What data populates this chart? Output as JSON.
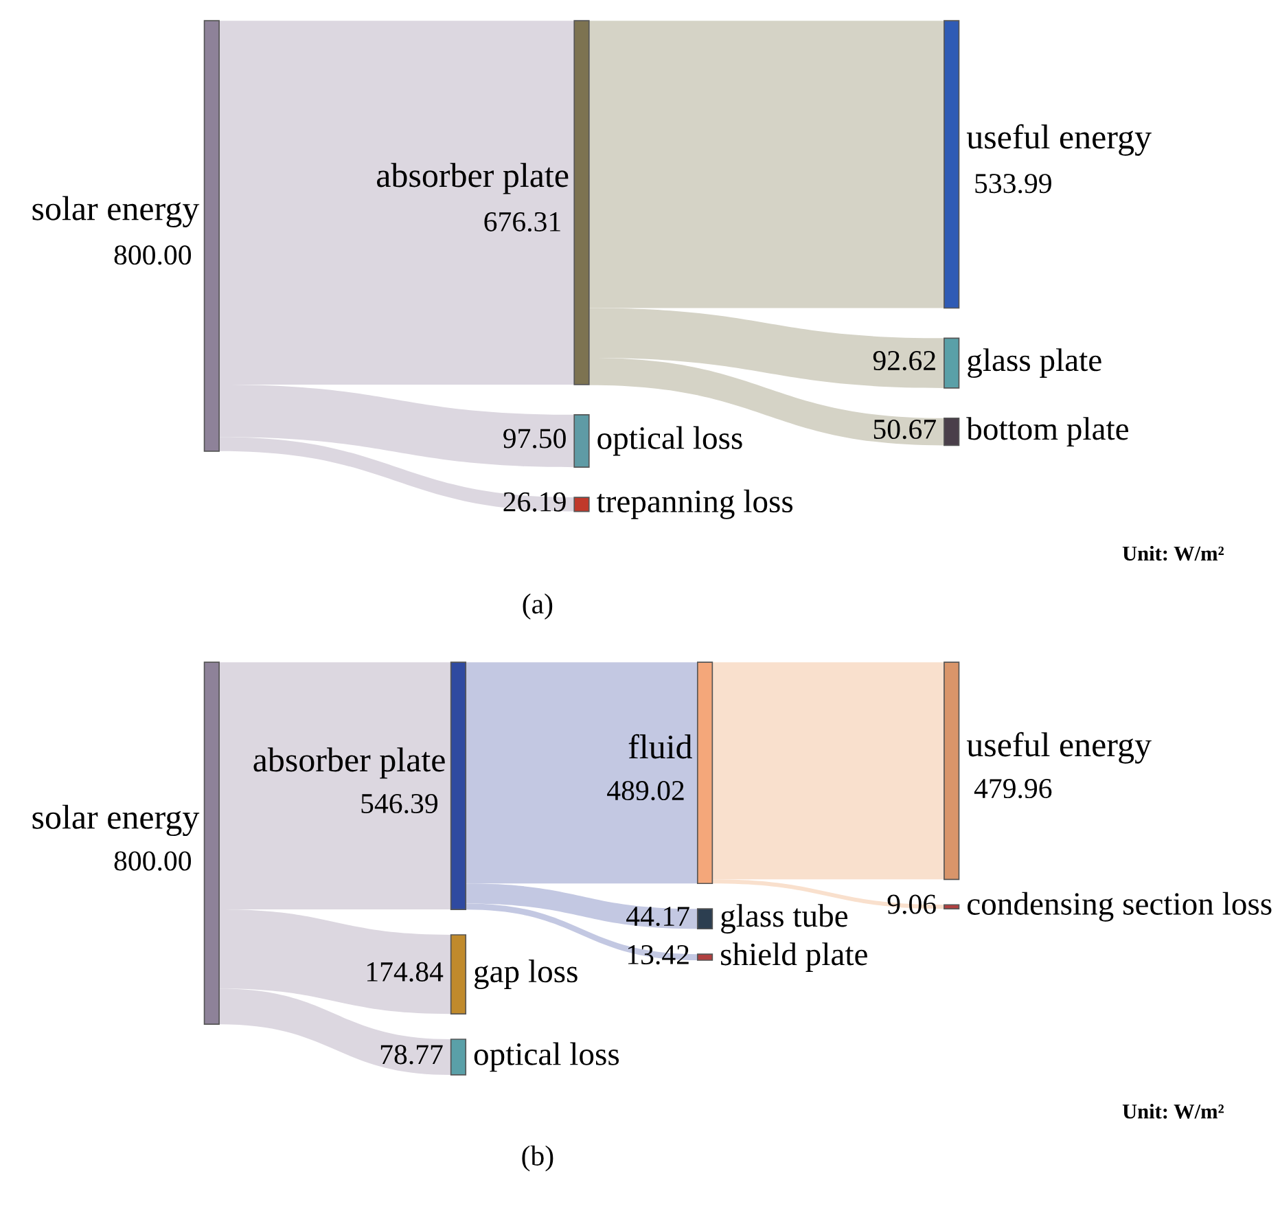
{
  "chart_data": [
    {
      "type": "other",
      "categories": [
        "solar energy",
        "absorber plate",
        "optical loss",
        "trepanning loss",
        "useful energy",
        "glass plate",
        "bottom plate"
      ],
      "values": [
        800.0,
        null,
        null,
        null,
        null,
        null,
        null
      ],
      "value_labels": [
        "800.00",
        null,
        null,
        null,
        null,
        null,
        null
      ],
      "colors": [
        "#8e8299",
        "#7d7351",
        "#5f9ba5",
        "#c0392b",
        "#2f5bb5",
        "#5aa0a8",
        "#4a3f4a"
      ],
      "series": [
        {
          "color": "#dcd7e0",
          "values": [
            null,
            676.31,
            97.5,
            26.19,
            null,
            null,
            null
          ],
          "value_labels": [
            null,
            "676.31",
            "97.50",
            "26.19",
            null,
            null,
            null
          ]
        },
        {
          "color": "#d5d3c6",
          "values": [
            null,
            null,
            null,
            null,
            533.99,
            92.62,
            50.67
          ],
          "value_labels": [
            null,
            null,
            null,
            null,
            "533.99",
            "92.62",
            "50.67"
          ]
        }
      ],
      "annotations": [
        "Unit: W/m²",
        "(a)"
      ]
    },
    {
      "type": "other",
      "categories": [
        "solar energy",
        "absorber plate",
        "fluid",
        "gap loss",
        "optical loss",
        "glass tube",
        "shield plate",
        "useful energy",
        "condensing section loss"
      ],
      "values": [
        800.0,
        null,
        null,
        null,
        null,
        null,
        null,
        null,
        null
      ],
      "value_labels": [
        "800.00",
        null,
        null,
        null,
        null,
        null,
        null,
        null,
        null
      ],
      "colors": [
        "#8e8299",
        "#2f4aa0",
        "#f4a77a",
        "#c08a2c",
        "#5aa0a8",
        "#2c3e50",
        "#b04040",
        "#d9956a",
        "#b04040"
      ],
      "series": [
        {
          "color": "#dcd7e0",
          "values": [
            null,
            546.39,
            null,
            174.84,
            78.77,
            null,
            null,
            null,
            null
          ],
          "value_labels": [
            null,
            "546.39",
            null,
            "174.84",
            "78.77",
            null,
            null,
            null,
            null
          ]
        },
        {
          "color": "#c3c8e2",
          "values": [
            null,
            null,
            489.02,
            null,
            null,
            44.17,
            13.42,
            null,
            null
          ],
          "value_labels": [
            null,
            null,
            "489.02",
            null,
            null,
            "44.17",
            "13.42",
            null,
            null
          ]
        },
        {
          "color": "#f9e0cd",
          "values": [
            null,
            null,
            null,
            null,
            null,
            null,
            null,
            479.96,
            9.06
          ],
          "value_labels": [
            null,
            null,
            null,
            null,
            null,
            null,
            null,
            "479.96",
            "9.06"
          ]
        }
      ],
      "annotations": [
        "Unit: W/m²",
        "(b)"
      ]
    }
  ]
}
